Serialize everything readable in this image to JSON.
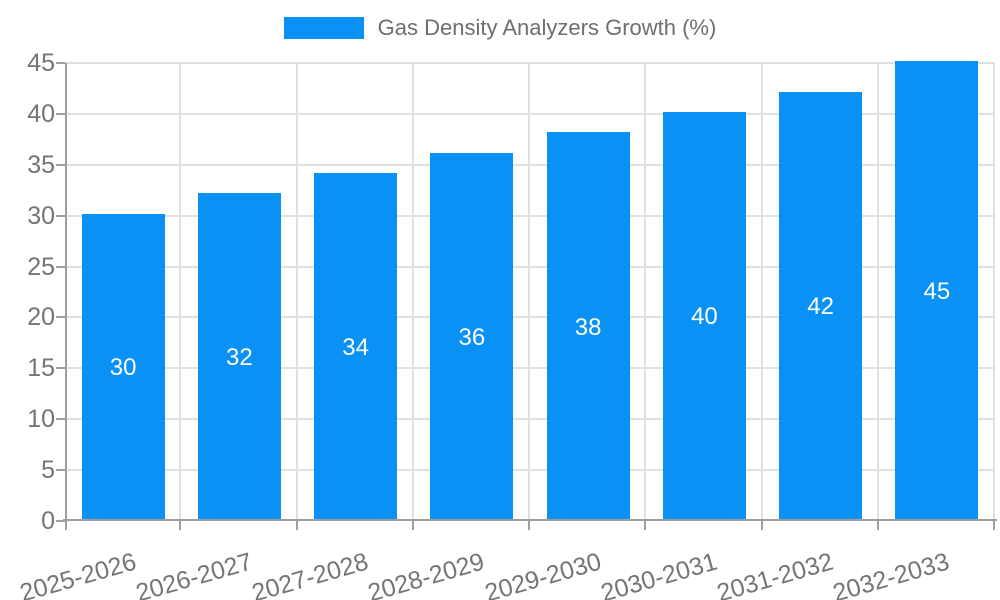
{
  "legend": {
    "label": "Gas Density Analyzers Growth (%)"
  },
  "chart_data": {
    "type": "bar",
    "title": "Gas Density Analyzers Growth (%)",
    "categories": [
      "2025-2026",
      "2026-2027",
      "2027-2028",
      "2028-2029",
      "2029-2030",
      "2030-2031",
      "2031-2032",
      "2032-2033"
    ],
    "values": [
      30,
      32,
      34,
      36,
      38,
      40,
      42,
      45
    ],
    "xlabel": "",
    "ylabel": "",
    "ylim": [
      0,
      45
    ],
    "yticks": [
      0,
      5,
      10,
      15,
      20,
      25,
      30,
      35,
      40,
      45
    ],
    "grid": true,
    "legend_position": "top-center",
    "bar_labels_inside": true,
    "colors": {
      "bar": "#0a91f5",
      "grid": "#e0e0e0",
      "axis": "#9e9e9e",
      "tick_label": "#757575",
      "legend_text": "#6e6e6e",
      "bar_label": "#ffffff",
      "background": "#ffffff"
    }
  }
}
